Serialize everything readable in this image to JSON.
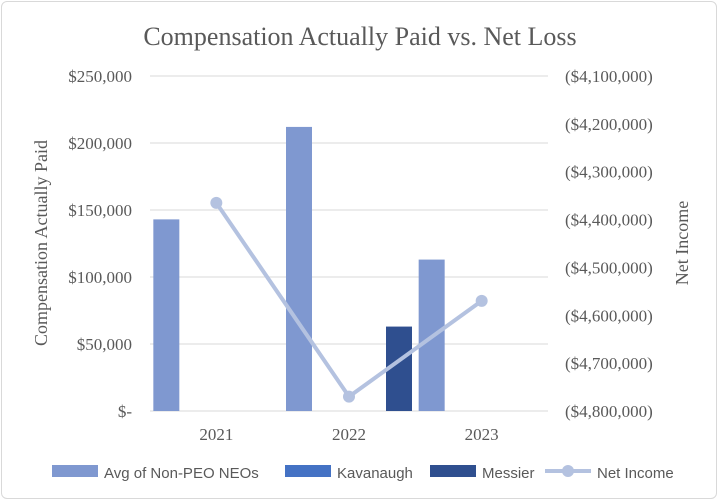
{
  "chart_data": {
    "type": "bar",
    "title": "Compensation Actually Paid vs. Net Loss",
    "ylabel": "Compensation Actually Paid",
    "y2label": "Net Income",
    "categories": [
      "2021",
      "2022",
      "2023"
    ],
    "ylim": [
      0,
      250000
    ],
    "y2lim": [
      -4800000,
      -4100000
    ],
    "yticks": [
      "$250,000",
      "$200,000",
      "$150,000",
      "$100,000",
      "$50,000",
      "$-"
    ],
    "y2ticks": [
      "($4,100,000)",
      "($4,200,000)",
      "($4,300,000)",
      "($4,400,000)",
      "($4,500,000)",
      "($4,600,000)",
      "($4,700,000)",
      "($4,800,000)"
    ],
    "series": [
      {
        "name": "Avg of Non-PEO NEOs",
        "kind": "bar",
        "color": "#7f98d0",
        "values": [
          143000,
          212000,
          113000
        ]
      },
      {
        "name": "Kavanaugh",
        "kind": "bar",
        "color": "#4472c4",
        "values": [
          null,
          null,
          null
        ]
      },
      {
        "name": "Messier",
        "kind": "bar",
        "color": "#2f4f8f",
        "values": [
          null,
          63000,
          null
        ]
      },
      {
        "name": "Net Income",
        "kind": "line",
        "axis": "secondary",
        "color": "#b4c2e0",
        "values": [
          -4365000,
          -4770000,
          -4570000
        ]
      }
    ],
    "grid": true,
    "legend": "bottom"
  }
}
